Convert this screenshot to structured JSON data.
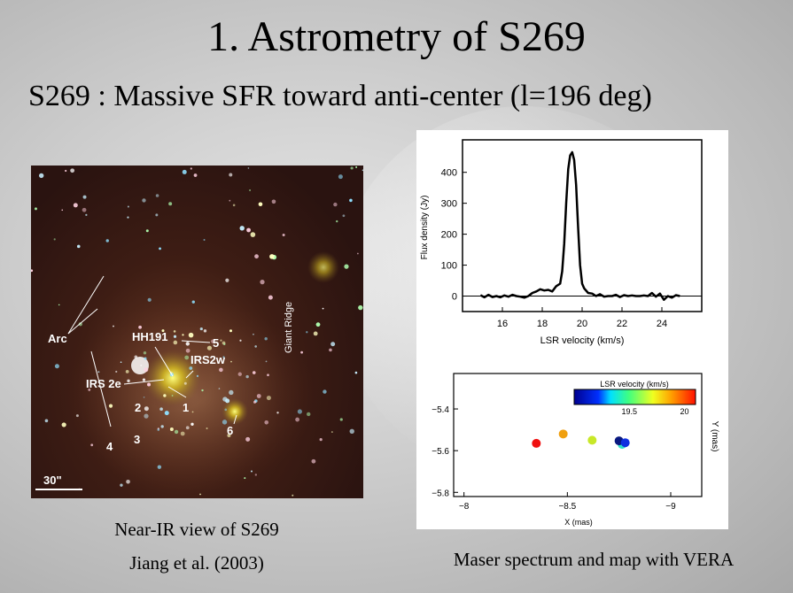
{
  "slide": {
    "title": "1. Astrometry of S269",
    "subtitle": "S269 : Massive SFR toward anti-center (l=196 deg)"
  },
  "ir_image": {
    "labels": {
      "arc": "Arc",
      "hh191": "HH191",
      "irs2w": "IRS2w",
      "irs2e": "IRS 2e",
      "giant_ridge": "Giant Ridge",
      "n1": "1",
      "n2": "2",
      "n3": "3",
      "n4": "4",
      "n5": "5",
      "n6": "6",
      "scale": "30\""
    },
    "caption_line1": "Near-IR view of S269",
    "caption_line2": "Jiang et al. (2003)"
  },
  "maser_caption": "Maser spectrum and map with VERA",
  "chart_data": [
    {
      "type": "line",
      "title": "",
      "xlabel": "LSR velocity (km/s)",
      "ylabel": "Flux density (Jy)",
      "xlim": [
        14,
        26
      ],
      "ylim": [
        -50,
        505
      ],
      "xticks": [
        16,
        18,
        20,
        22,
        24
      ],
      "yticks": [
        0,
        100,
        200,
        300,
        400
      ],
      "x": [
        14.9,
        15.1,
        15.3,
        15.5,
        15.7,
        15.9,
        16.1,
        16.3,
        16.5,
        16.7,
        16.9,
        17.1,
        17.3,
        17.5,
        17.7,
        17.9,
        18.1,
        18.3,
        18.5,
        18.7,
        18.9,
        19.0,
        19.1,
        19.2,
        19.3,
        19.4,
        19.5,
        19.6,
        19.7,
        19.8,
        19.9,
        20.0,
        20.1,
        20.3,
        20.5,
        20.7,
        20.9,
        21.1,
        21.3,
        21.5,
        21.7,
        21.9,
        22.1,
        22.3,
        22.5,
        22.7,
        22.9,
        23.1,
        23.3,
        23.5,
        23.7,
        23.9,
        24.1,
        24.3,
        24.5,
        24.7,
        24.9
      ],
      "y": [
        3,
        -4,
        4,
        -3,
        0,
        -4,
        2,
        -2,
        4,
        0,
        -2,
        -5,
        0,
        10,
        15,
        22,
        18,
        20,
        15,
        32,
        40,
        80,
        170,
        300,
        410,
        455,
        465,
        440,
        360,
        220,
        100,
        40,
        25,
        10,
        8,
        0,
        6,
        -2,
        0,
        0,
        4,
        -3,
        3,
        0,
        2,
        0,
        0,
        2,
        0,
        10,
        -2,
        8,
        -12,
        0,
        -5,
        3,
        0
      ]
    },
    {
      "type": "scatter",
      "title": "",
      "xlabel": "X (mas)",
      "ylabel": "Y (mas)",
      "xlim": [
        -7.95,
        -9.15
      ],
      "ylim": [
        -5.82,
        -5.23
      ],
      "xticks": [
        -8,
        -8.5,
        -9
      ],
      "yticks": [
        -5.4,
        -5.6,
        -5.8
      ],
      "colorbar": {
        "label": "LSR velocity (km/s)",
        "ticks": [
          19.5,
          20
        ],
        "range": [
          19.0,
          20.1
        ]
      },
      "points": [
        {
          "x": -8.35,
          "y": -5.565,
          "v": 20.05,
          "color": "#f01010"
        },
        {
          "x": -8.48,
          "y": -5.52,
          "v": 19.85,
          "color": "#f0a010"
        },
        {
          "x": -8.62,
          "y": -5.55,
          "v": 19.65,
          "color": "#c8e828"
        },
        {
          "x": -8.765,
          "y": -5.57,
          "v": 19.3,
          "color": "#30e0c8"
        },
        {
          "x": -8.75,
          "y": -5.553,
          "v": 19.05,
          "color": "#081880"
        },
        {
          "x": -8.78,
          "y": -5.562,
          "v": 19.15,
          "color": "#1030e0"
        }
      ]
    }
  ]
}
